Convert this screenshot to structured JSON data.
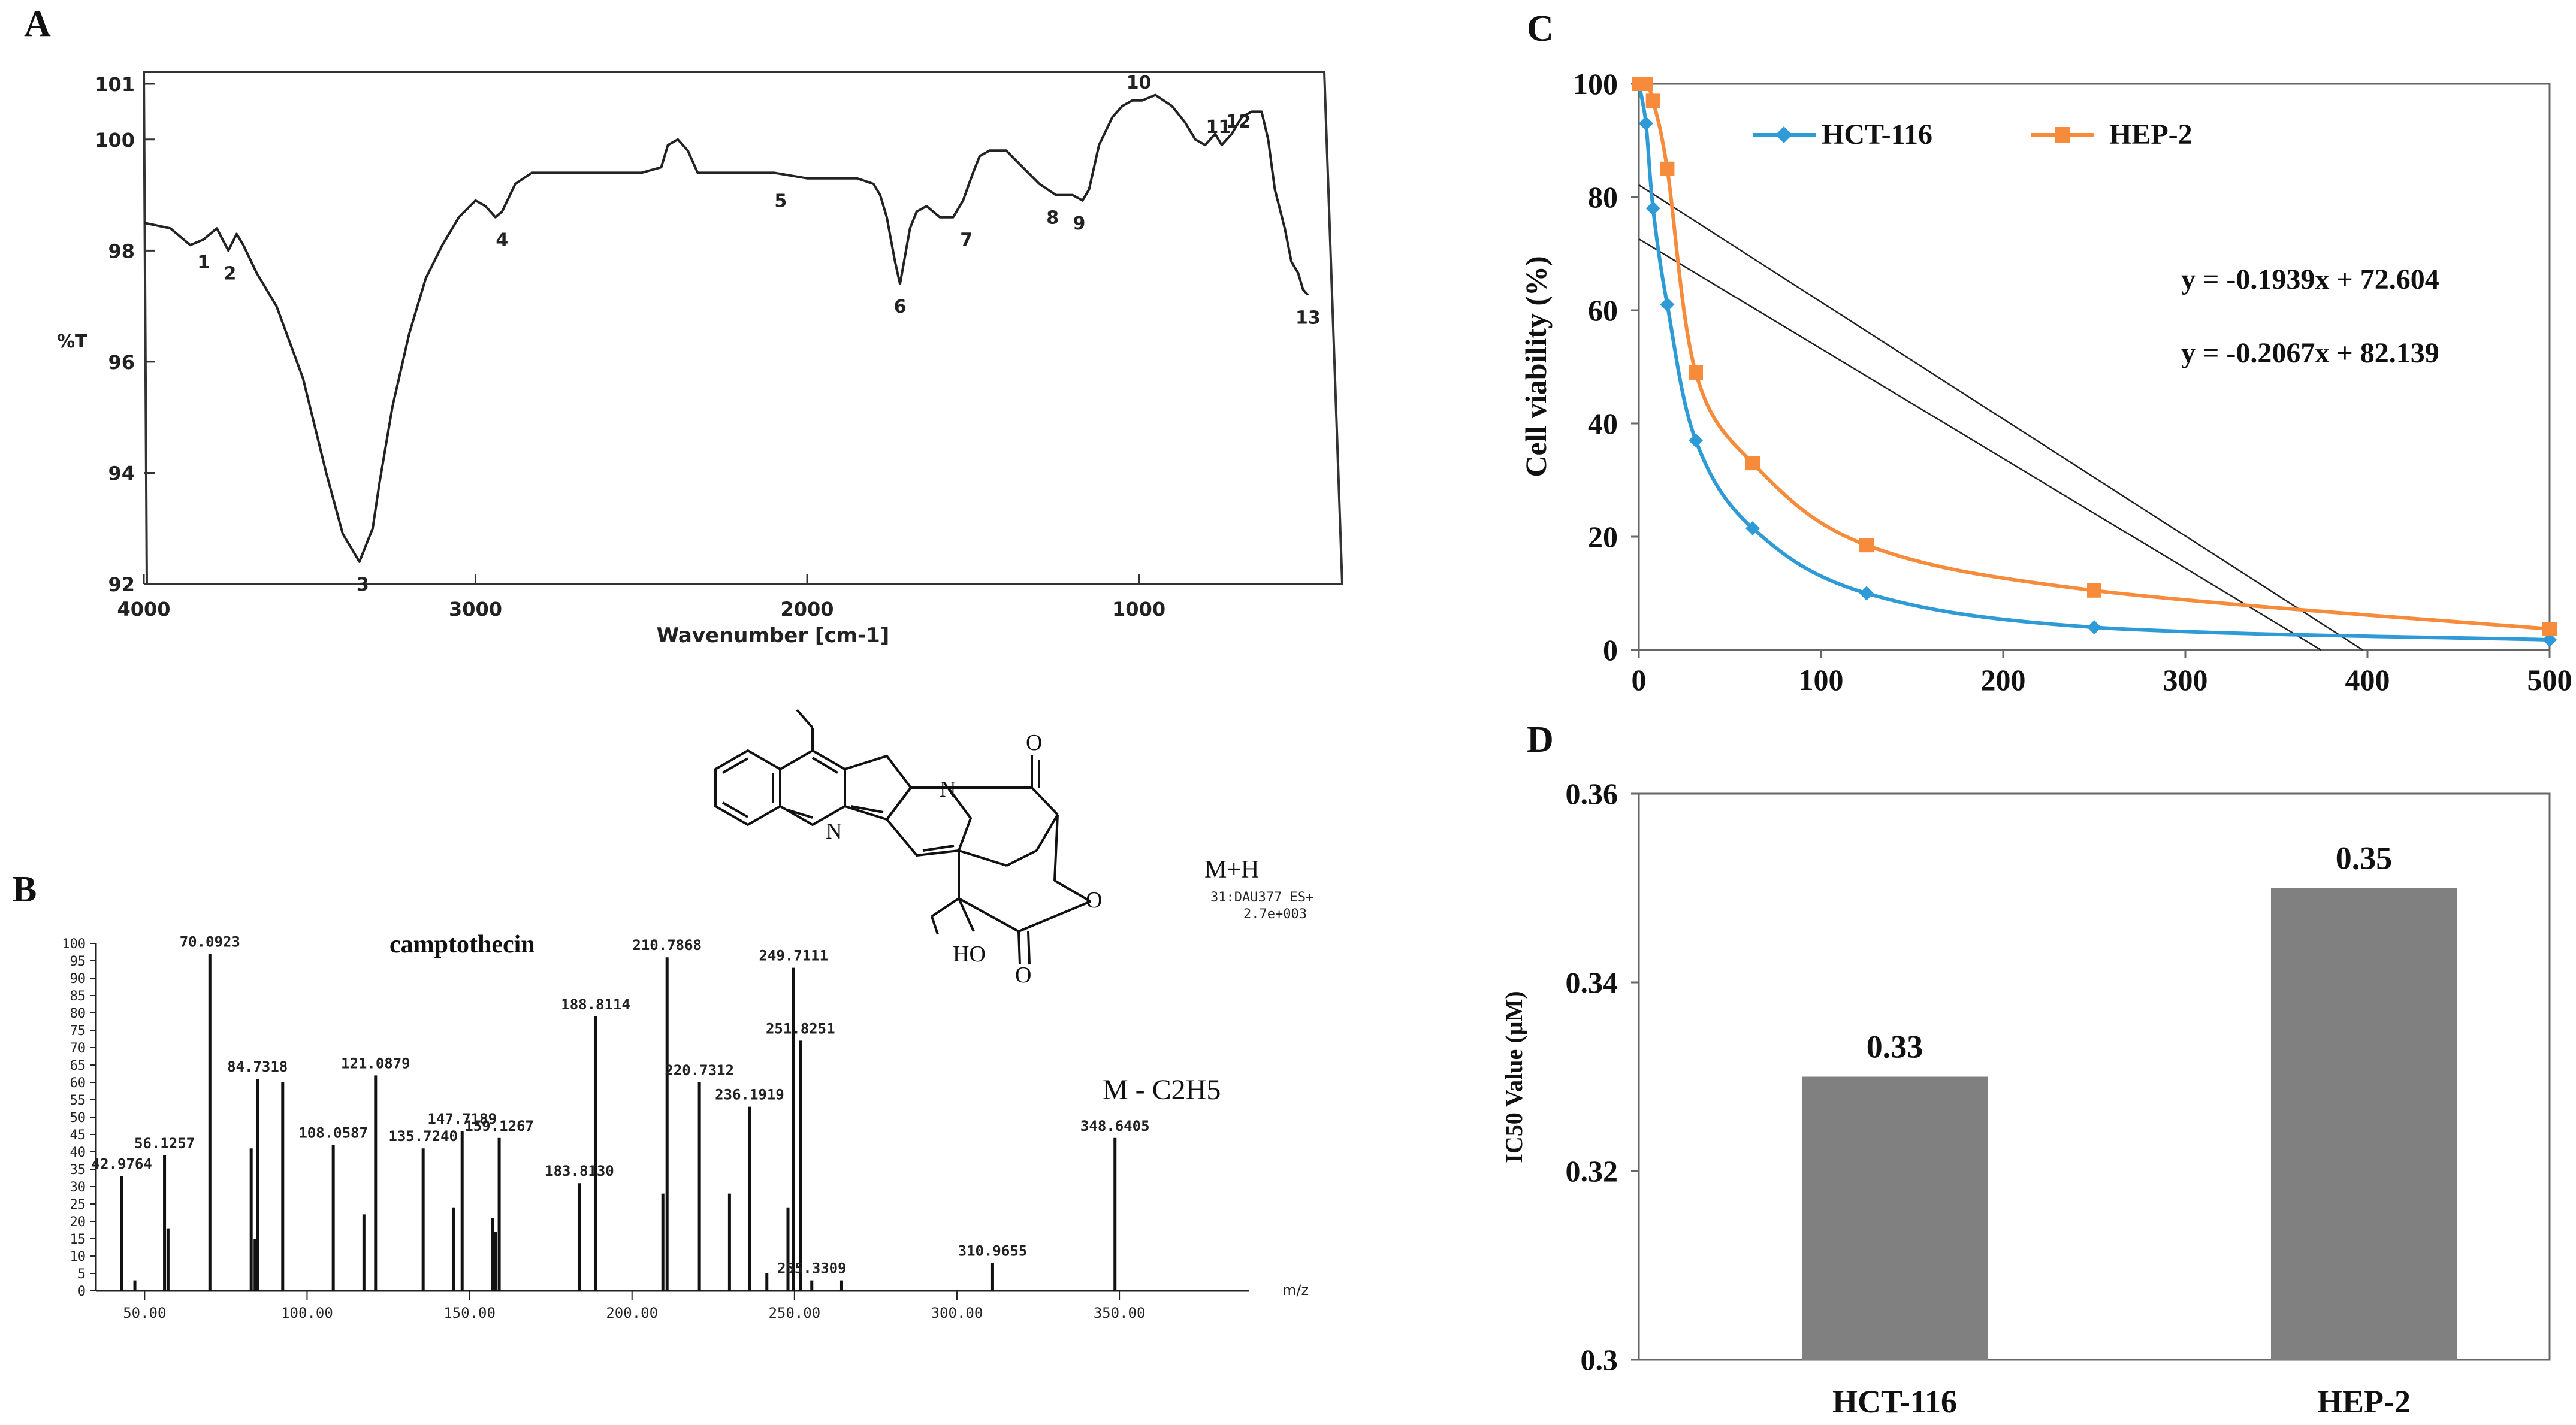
{
  "panels": {
    "A": "A",
    "B": "B",
    "C": "C",
    "D": "D"
  },
  "chart_data": [
    {
      "id": "A",
      "type": "line",
      "title": "",
      "xlabel": "Wavenumber [cm-1]",
      "ylabel": "%T",
      "xlim": [
        4000,
        450
      ],
      "ylim": [
        92,
        101
      ],
      "x_ticks": [
        "4000",
        "3000",
        "2000",
        "1000"
      ],
      "y_ticks": [
        "92",
        "94",
        "96",
        "98",
        "100",
        "101"
      ],
      "x": [
        4000,
        3920,
        3860,
        3820,
        3780,
        3745,
        3720,
        3700,
        3660,
        3600,
        3520,
        3450,
        3400,
        3350,
        3310,
        3290,
        3250,
        3200,
        3150,
        3100,
        3050,
        3000,
        2970,
        2940,
        2920,
        2880,
        2830,
        2780,
        2700,
        2600,
        2500,
        2440,
        2420,
        2390,
        2360,
        2330,
        2250,
        2100,
        2000,
        1950,
        1900,
        1850,
        1800,
        1780,
        1760,
        1735,
        1720,
        1705,
        1690,
        1670,
        1640,
        1600,
        1560,
        1530,
        1500,
        1480,
        1450,
        1400,
        1350,
        1300,
        1250,
        1200,
        1170,
        1150,
        1120,
        1080,
        1050,
        1020,
        990,
        950,
        900,
        860,
        830,
        800,
        770,
        750,
        720,
        690,
        660,
        630,
        610,
        590,
        560,
        540,
        520,
        505,
        490
      ],
      "y": [
        98.5,
        98.4,
        98.1,
        98.2,
        98.4,
        98.0,
        98.3,
        98.1,
        97.6,
        97.0,
        95.7,
        94.0,
        92.9,
        92.4,
        93.0,
        93.8,
        95.2,
        96.5,
        97.5,
        98.1,
        98.6,
        98.9,
        98.8,
        98.6,
        98.7,
        99.2,
        99.4,
        99.4,
        99.4,
        99.4,
        99.4,
        99.5,
        99.9,
        100.0,
        99.8,
        99.4,
        99.4,
        99.4,
        99.3,
        99.3,
        99.3,
        99.3,
        99.2,
        99.0,
        98.6,
        97.8,
        97.4,
        97.9,
        98.4,
        98.7,
        98.8,
        98.6,
        98.6,
        98.9,
        99.4,
        99.7,
        99.8,
        99.8,
        99.5,
        99.2,
        99.0,
        99.0,
        98.9,
        99.1,
        99.9,
        100.4,
        100.6,
        100.7,
        100.7,
        100.8,
        100.6,
        100.3,
        100.0,
        99.9,
        100.1,
        99.9,
        100.1,
        100.4,
        100.5,
        100.5,
        100.0,
        99.1,
        98.4,
        97.8,
        97.6,
        97.3,
        97.2
      ],
      "peak_labels": [
        {
          "label": "1",
          "x": 3820,
          "y": 98.2
        },
        {
          "label": "2",
          "x": 3740,
          "y": 98.0
        },
        {
          "label": "3",
          "x": 3340,
          "y": 92.4
        },
        {
          "label": "4",
          "x": 2920,
          "y": 98.6
        },
        {
          "label": "5",
          "x": 2080,
          "y": 99.3
        },
        {
          "label": "6",
          "x": 1720,
          "y": 97.4
        },
        {
          "label": "7",
          "x": 1520,
          "y": 98.6
        },
        {
          "label": "8",
          "x": 1260,
          "y": 99.0
        },
        {
          "label": "9",
          "x": 1180,
          "y": 98.9
        },
        {
          "label": "10",
          "x": 1000,
          "y": 100.7
        },
        {
          "label": "11",
          "x": 760,
          "y": 99.9
        },
        {
          "label": "12",
          "x": 700,
          "y": 100.0
        },
        {
          "label": "13",
          "x": 490,
          "y": 97.2
        }
      ]
    },
    {
      "id": "B",
      "type": "bar",
      "title": "camptothecin",
      "xlabel": "m/z",
      "ylabel": "",
      "xlim": [
        35,
        390
      ],
      "ylim": [
        0,
        100
      ],
      "x_ticks": [
        "50.00",
        "100.00",
        "150.00",
        "200.00",
        "250.00",
        "300.00",
        "350.00"
      ],
      "y_ticks": [
        "0",
        "5",
        "10",
        "15",
        "20",
        "25",
        "30",
        "35",
        "40",
        "45",
        "50",
        "55",
        "60",
        "65",
        "70",
        "75",
        "80",
        "85",
        "90",
        "95",
        "100"
      ],
      "peaks": [
        {
          "mz": 42.9764,
          "intensity": 33,
          "label": "42.9764"
        },
        {
          "mz": 47.0,
          "intensity": 3,
          "label": ""
        },
        {
          "mz": 56.1257,
          "intensity": 39,
          "label": "56.1257"
        },
        {
          "mz": 57.2,
          "intensity": 18,
          "label": ""
        },
        {
          "mz": 70.0923,
          "intensity": 97,
          "label": "70.0923"
        },
        {
          "mz": 82.8,
          "intensity": 41,
          "label": ""
        },
        {
          "mz": 84.0,
          "intensity": 15,
          "label": ""
        },
        {
          "mz": 84.7318,
          "intensity": 61,
          "label": "84.7318"
        },
        {
          "mz": 92.5,
          "intensity": 60,
          "label": ""
        },
        {
          "mz": 108.0587,
          "intensity": 42,
          "label": "108.0587"
        },
        {
          "mz": 117.5,
          "intensity": 22,
          "label": ""
        },
        {
          "mz": 121.0879,
          "intensity": 62,
          "label": "121.0879"
        },
        {
          "mz": 135.724,
          "intensity": 41,
          "label": "135.7240"
        },
        {
          "mz": 145.0,
          "intensity": 24,
          "label": ""
        },
        {
          "mz": 147.7189,
          "intensity": 46,
          "label": "147.7189"
        },
        {
          "mz": 157.0,
          "intensity": 21,
          "label": ""
        },
        {
          "mz": 158.0,
          "intensity": 17,
          "label": ""
        },
        {
          "mz": 159.1267,
          "intensity": 44,
          "label": "159.1267"
        },
        {
          "mz": 183.813,
          "intensity": 31,
          "label": "183.8130"
        },
        {
          "mz": 188.8114,
          "intensity": 79,
          "label": "188.8114"
        },
        {
          "mz": 209.5,
          "intensity": 28,
          "label": ""
        },
        {
          "mz": 210.7868,
          "intensity": 96,
          "label": "210.7868"
        },
        {
          "mz": 220.7312,
          "intensity": 60,
          "label": "220.7312"
        },
        {
          "mz": 230.0,
          "intensity": 28,
          "label": ""
        },
        {
          "mz": 236.1919,
          "intensity": 53,
          "label": "236.1919"
        },
        {
          "mz": 241.5,
          "intensity": 5,
          "label": ""
        },
        {
          "mz": 248.0,
          "intensity": 24,
          "label": ""
        },
        {
          "mz": 249.7111,
          "intensity": 93,
          "label": "249.7111"
        },
        {
          "mz": 251.8251,
          "intensity": 72,
          "label": "251.8251"
        },
        {
          "mz": 255.3309,
          "intensity": 3,
          "label": "255.3309"
        },
        {
          "mz": 264.5,
          "intensity": 3,
          "label": ""
        },
        {
          "mz": 310.9655,
          "intensity": 8,
          "label": "310.9655"
        },
        {
          "mz": 348.6405,
          "intensity": 44,
          "label": "348.6405"
        }
      ],
      "annotations": [
        "M+H",
        "31:DAU377 ES+",
        "2.7e+003",
        "M - C2H5"
      ],
      "structure_labels": [
        "N",
        "N",
        "O",
        "O",
        "O",
        "HO"
      ]
    },
    {
      "id": "C",
      "type": "line",
      "title": "",
      "xlabel": "",
      "ylabel": "Cell viability (%)",
      "xlim": [
        0,
        500
      ],
      "ylim": [
        0,
        100
      ],
      "x_ticks": [
        "0",
        "100",
        "200",
        "300",
        "400",
        "500"
      ],
      "y_ticks": [
        "0",
        "20",
        "40",
        "60",
        "80",
        "100"
      ],
      "legend": [
        "HCT-116",
        "HEP-2"
      ],
      "legend_position": "top",
      "series": [
        {
          "name": "HCT-116",
          "color": "#2e9bd6",
          "marker": "diamond",
          "x": [
            0,
            3.9,
            7.8,
            15.6,
            31.25,
            62.5,
            125,
            250,
            500
          ],
          "y": [
            100,
            93,
            78,
            61,
            37,
            21.5,
            10,
            4,
            1.8
          ]
        },
        {
          "name": "HEP-2",
          "color": "#f58b3b",
          "marker": "square",
          "x": [
            0,
            3.9,
            7.8,
            15.6,
            31.25,
            62.5,
            125,
            250,
            500
          ],
          "y": [
            100,
            100,
            97,
            85,
            49,
            33,
            18.5,
            10.5,
            3.7
          ]
        }
      ],
      "trendlines": [
        {
          "equation": "y = -0.1939x + 72.604",
          "slope": -0.1939,
          "intercept": 72.604
        },
        {
          "equation": "y = -0.2067x + 82.139",
          "slope": -0.2067,
          "intercept": 82.139
        }
      ]
    },
    {
      "id": "D",
      "type": "bar",
      "title": "",
      "xlabel": "",
      "ylabel": "IC50 Value (µM)",
      "categories": [
        "HCT-116",
        "HEP-2"
      ],
      "values": [
        0.33,
        0.35
      ],
      "value_labels": [
        "0.33",
        "0.35"
      ],
      "ylim": [
        0.3,
        0.36
      ],
      "y_ticks": [
        "0.3",
        "0.32",
        "0.34",
        "0.36"
      ],
      "bar_color": "#808080"
    }
  ]
}
